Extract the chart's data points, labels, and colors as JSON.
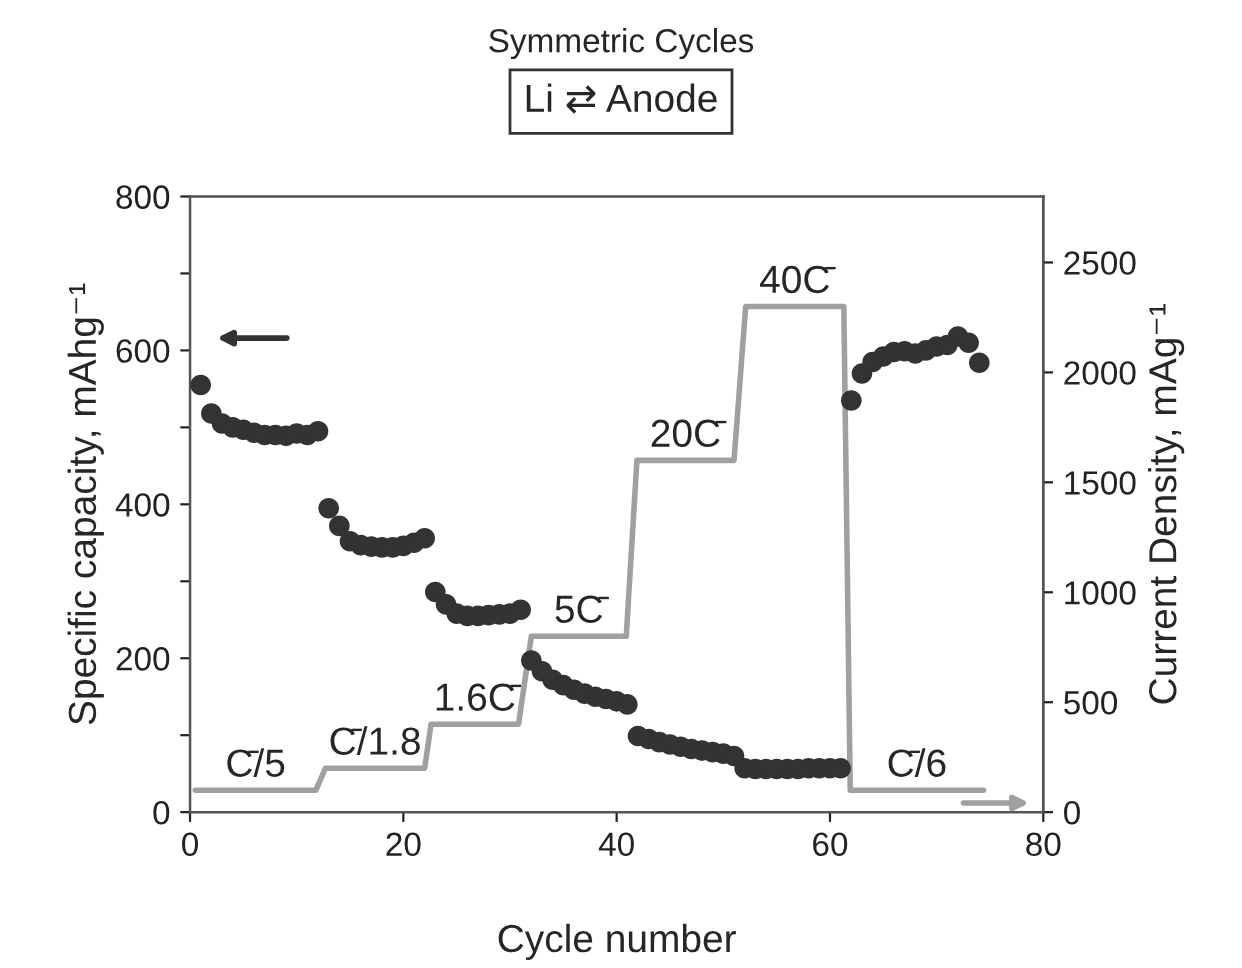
{
  "chart_data": {
    "type": "scatter",
    "title": "Symmetric Cycles",
    "subtitle": "Li ⇄ Anode",
    "xlabel": "Cycle number",
    "ylabel": "Specific capacity, mAhg⁻¹",
    "y2label": "Current Density, mAg⁻¹",
    "xlim": [
      0,
      80
    ],
    "xticks": [
      0,
      20,
      40,
      60,
      80
    ],
    "ylim": [
      0,
      800
    ],
    "yticks": [
      0,
      {
        "value": 100,
        "label": null
      },
      200,
      {
        "value": 300,
        "label": null
      },
      400,
      {
        "value": 500,
        "label": null
      },
      600,
      {
        "value": 700,
        "label": null
      },
      800
    ],
    "y2lim": [
      0,
      2800
    ],
    "y2ticks": [
      0,
      500,
      1000,
      1500,
      2000,
      2500
    ],
    "marker": "circle",
    "grid": false,
    "legend": false,
    "series": [
      {
        "color": "#333333",
        "x": [
          1,
          2,
          3,
          4,
          5,
          6,
          7,
          8,
          9,
          10,
          11,
          12,
          13,
          14,
          15,
          16,
          17,
          18,
          19,
          20,
          21,
          22,
          23,
          24,
          25,
          26,
          27,
          28,
          29,
          30,
          31,
          32,
          33,
          34,
          35,
          36,
          37,
          38,
          39,
          40,
          41,
          42,
          43,
          44,
          45,
          46,
          47,
          48,
          49,
          50,
          51,
          52,
          53,
          54,
          55,
          56,
          57,
          58,
          59,
          60,
          61,
          62,
          63,
          64,
          65,
          66,
          67,
          68,
          69,
          70,
          71,
          72,
          73,
          74
        ],
        "values": [
          555,
          518,
          505,
          500,
          497,
          493,
          490,
          490,
          489,
          492,
          490,
          495,
          395,
          372,
          352,
          347,
          345,
          344,
          344,
          346,
          350,
          356,
          286,
          270,
          258,
          255,
          255,
          256,
          257,
          258,
          263,
          197,
          183,
          172,
          165,
          159,
          154,
          150,
          147,
          144,
          140,
          99,
          95,
          91,
          88,
          85,
          82,
          80,
          78,
          76,
          73,
          57,
          56,
          56,
          56,
          56,
          56,
          57,
          57,
          57,
          57,
          535,
          570,
          585,
          592,
          598,
          599,
          596,
          600,
          605,
          607,
          618,
          610,
          584
        ]
      },
      {
        "type": "line",
        "axis": "y2",
        "color": "#a0a0a0",
        "marker": "none",
        "line_style": "solid",
        "x": [
          0.5,
          11.8,
          12.7,
          22,
          22.6,
          30.8,
          32,
          40.9,
          41.9,
          51,
          52.1,
          61.3,
          61.9,
          74.4
        ],
        "values": [
          100,
          100,
          200,
          200,
          400,
          400,
          800,
          800,
          1600,
          1600,
          2300,
          2300,
          100,
          100
        ]
      }
    ],
    "annotations": [
      "C̄/5",
      "C̄/1.8",
      "1.6C̄",
      "5C̄",
      "20C̄",
      "40C̄",
      "C̄/6"
    ]
  }
}
